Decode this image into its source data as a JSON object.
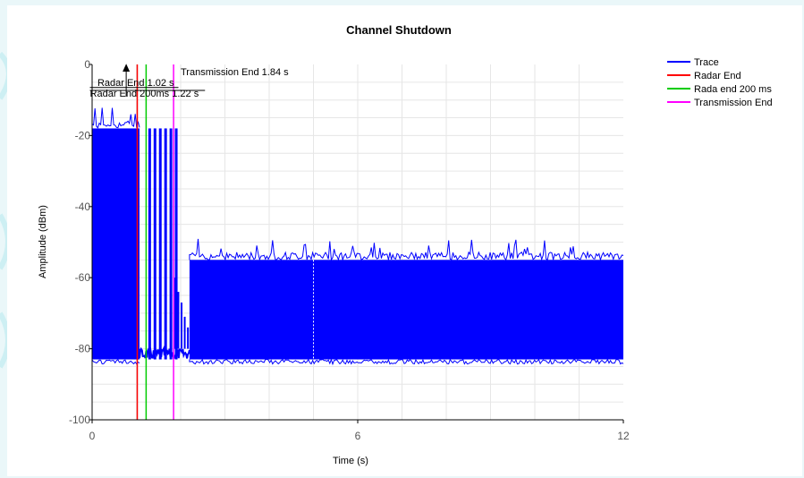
{
  "chart_data": {
    "type": "line",
    "title": "Channel Shutdown",
    "xlabel": "Time (s)",
    "ylabel": "Amplitude (dBm)",
    "xlim": [
      0,
      12
    ],
    "ylim": [
      -100,
      0
    ],
    "xticks": [
      0,
      6,
      12
    ],
    "yticks": [
      0,
      -20,
      -40,
      -60,
      -80,
      -100
    ],
    "grid": true,
    "legend_position": "right",
    "series": [
      {
        "name": "Trace",
        "color": "#0000ff",
        "segments": [
          {
            "x": [
              0.0,
              1.07
            ],
            "floor": -83,
            "peak": -18,
            "style": "dense-fill"
          },
          {
            "x": [
              1.07,
              2.2
            ],
            "floor": -80,
            "style": "baseline",
            "bursts_x": [
              1.3,
              1.42,
              1.54,
              1.66,
              1.78,
              1.9
            ],
            "burst_peak": -18
          },
          {
            "x": [
              1.84,
              2.2
            ],
            "floor": -80,
            "style": "decay-spikes",
            "spike_peaks": [
              -60,
              -64,
              -67,
              -71,
              -74
            ]
          },
          {
            "x": [
              2.2,
              12.0
            ],
            "floor": -83,
            "peak": -55,
            "style": "dense-fill"
          }
        ]
      },
      {
        "name": "Radar End",
        "color": "#ff0000",
        "type": "vline",
        "x": 1.02
      },
      {
        "name": "Rada end 200 ms",
        "color": "#00cc00",
        "type": "vline",
        "x": 1.22
      },
      {
        "name": "Transmission End",
        "color": "#ff00ff",
        "type": "vline",
        "x": 1.84
      }
    ],
    "annotations": [
      {
        "text": "Radar End 1.02 s",
        "x": 1.02,
        "y": -5
      },
      {
        "text": "Radar End 200ms 1.22 s",
        "x": 1.22,
        "y": -8
      },
      {
        "text": "Transmission End 1.84 s",
        "x": 1.84,
        "y": -2
      }
    ]
  }
}
